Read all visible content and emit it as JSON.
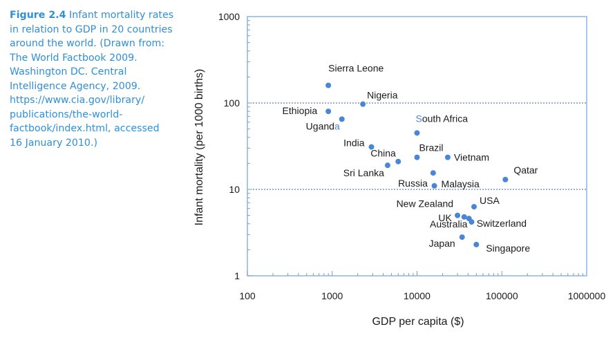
{
  "caption": {
    "label": "Figure 2.4",
    "lines": [
      "Infant mortality rates",
      "in relation to GDP in 20 countries",
      "around the world. (Drawn from:",
      "The World Factbook 2009.",
      "Washington DC. Central",
      "Intelligence Agency, 2009.",
      "https://www.cia.gov/library/",
      "publications/the-world-",
      "factbook/index.html, accessed",
      "16 January 2010.)"
    ]
  },
  "chart_data": {
    "type": "scatter",
    "xlabel": "GDP per capita ($)",
    "ylabel": "Infant mortality (per 1000 births)",
    "x_scale": "log",
    "y_scale": "log",
    "xlim": [
      100,
      1000000
    ],
    "ylim": [
      1,
      1000
    ],
    "x_ticks": [
      "100",
      "1000",
      "10000",
      "100000",
      "1000000"
    ],
    "y_ticks": [
      "1",
      "10",
      "100",
      "1000"
    ],
    "reference_lines_y": [
      10,
      100
    ],
    "grid": false,
    "colors": {
      "points": "#4a86d8",
      "frame": "#8ab4e6",
      "reference": "#3a5e9a",
      "accent_text": "#4a86d8"
    },
    "points": [
      {
        "name": "Sierra Leone",
        "x": 900,
        "y": 160
      },
      {
        "name": "Nigeria",
        "x": 2300,
        "y": 97
      },
      {
        "name": "Ethiopia",
        "x": 900,
        "y": 80
      },
      {
        "name": "Uganda",
        "x": 1300,
        "y": 65
      },
      {
        "name": "South Africa",
        "x": 10000,
        "y": 45
      },
      {
        "name": "India",
        "x": 2900,
        "y": 31
      },
      {
        "name": "Brazil",
        "x": 10000,
        "y": 23.5
      },
      {
        "name": "Vietnam",
        "x": 23000,
        "y": 23.5
      },
      {
        "name": "China",
        "x": 6000,
        "y": 21
      },
      {
        "name": "Sri Lanka",
        "x": 4500,
        "y": 19
      },
      {
        "name": "Russia",
        "x": 15500,
        "y": 15.5
      },
      {
        "name": "Malaysia",
        "x": 16000,
        "y": 11
      },
      {
        "name": "Qatar",
        "x": 110000,
        "y": 13
      },
      {
        "name": "USA",
        "x": 47000,
        "y": 6.3
      },
      {
        "name": "New Zealand",
        "x": 30000,
        "y": 5
      },
      {
        "name": "UK",
        "x": 36000,
        "y": 4.8
      },
      {
        "name": "Switzerland",
        "x": 41000,
        "y": 4.6
      },
      {
        "name": "Australia",
        "x": 44000,
        "y": 4.2
      },
      {
        "name": "Japan",
        "x": 34000,
        "y": 2.8
      },
      {
        "name": "Singapore",
        "x": 50000,
        "y": 2.3
      }
    ]
  }
}
